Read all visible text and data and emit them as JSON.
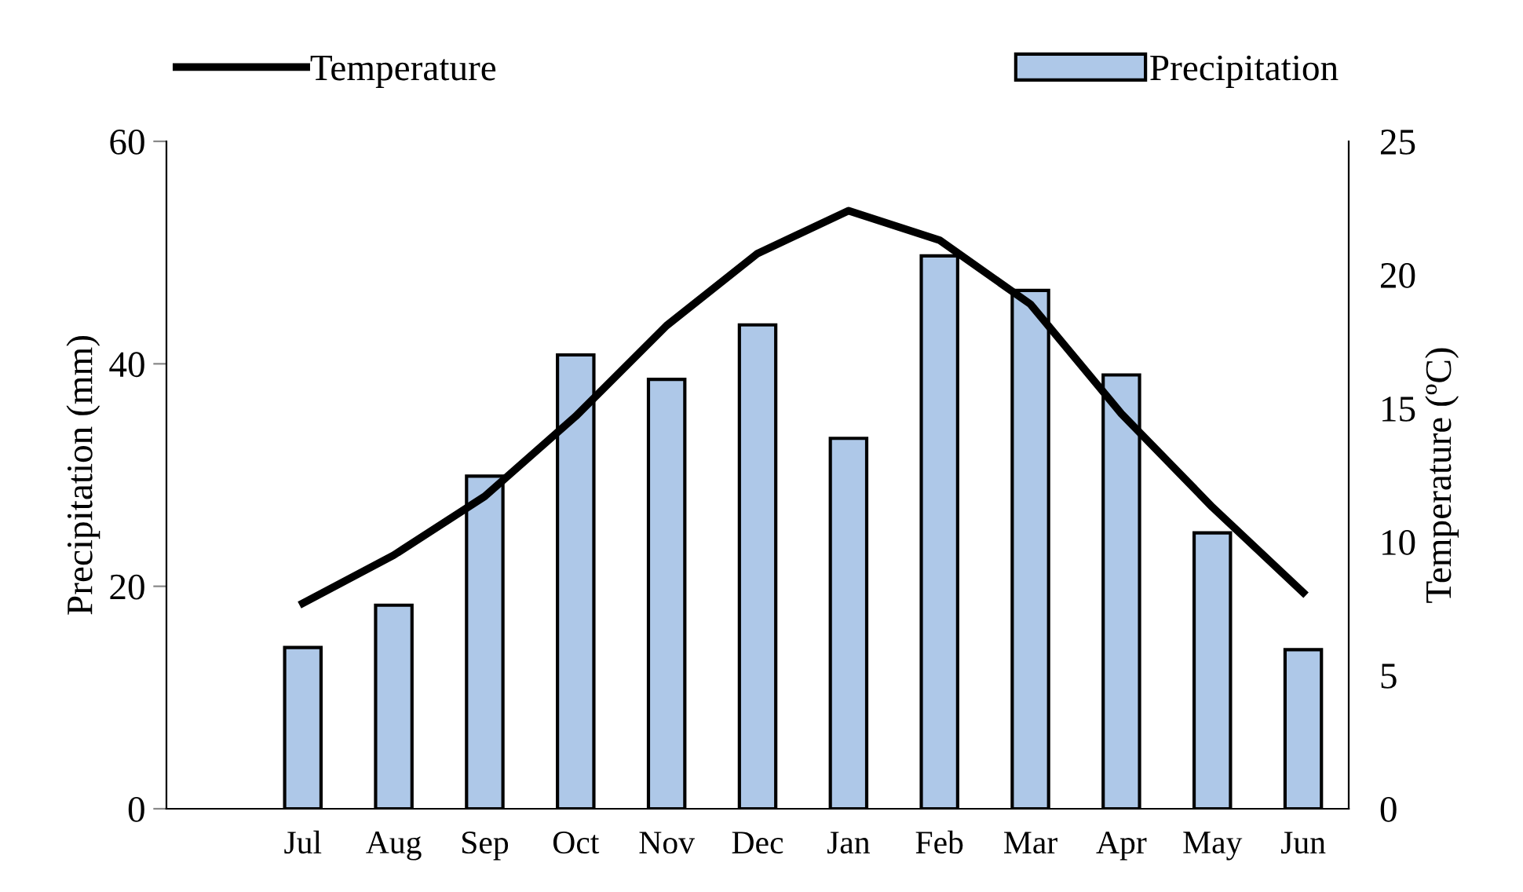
{
  "chart_data": {
    "type": "bar",
    "categories": [
      "Jul",
      "Aug",
      "Sep",
      "Oct",
      "Nov",
      "Dec",
      "Jan",
      "Feb",
      "Mar",
      "Apr",
      "May",
      "Jun"
    ],
    "series": [
      {
        "name": "Precipitation",
        "color": "#aec8e8",
        "values": [
          14.5,
          18.3,
          29.9,
          40.8,
          38.6,
          43.5,
          33.3,
          49.7,
          46.6,
          39.0,
          24.8,
          14.3
        ]
      },
      {
        "name": "Temperature",
        "type": "line",
        "axis": "y2",
        "color": "#000000",
        "values": [
          7.7,
          9.5,
          11.7,
          14.7,
          18.1,
          20.8,
          22.4,
          21.3,
          18.9,
          14.8,
          11.3,
          8.1
        ]
      }
    ],
    "ylabel": "Precipitation (mm)",
    "y2label": "Temperature (ºC)",
    "ylim": [
      0,
      60
    ],
    "yticks": [
      0,
      20,
      40,
      60
    ],
    "y2lim": [
      0,
      25
    ],
    "y2ticks": [
      0,
      5,
      10,
      15,
      20,
      25
    ],
    "legend": "top",
    "grid": false,
    "marker": "none",
    "line_style": "solid"
  }
}
